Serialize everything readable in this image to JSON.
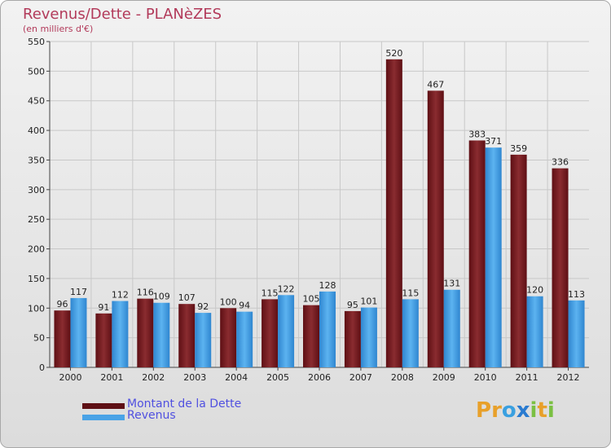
{
  "chart_data": {
    "type": "bar",
    "title": "Revenus/Dette - PLANèZES",
    "subtitle": "(en milliers d'€)",
    "categories": [
      "2000",
      "2001",
      "2002",
      "2003",
      "2004",
      "2005",
      "2006",
      "2007",
      "2008",
      "2009",
      "2010",
      "2011",
      "2012"
    ],
    "series": [
      {
        "name": "Montant de la Dette",
        "color": "#7a1f24",
        "values": [
          96,
          91,
          116,
          107,
          100,
          115,
          105,
          95,
          520,
          467,
          383,
          359,
          336
        ]
      },
      {
        "name": "Revenus",
        "color": "#4aa3e6",
        "values": [
          117,
          112,
          109,
          92,
          94,
          122,
          128,
          101,
          115,
          131,
          371,
          120,
          113
        ]
      }
    ],
    "ylim": [
      0,
      550
    ],
    "yticks": [
      0,
      50,
      100,
      150,
      200,
      250,
      300,
      350,
      400,
      450,
      500,
      550
    ],
    "grid": true,
    "legend_position": "bottom-left"
  },
  "logo": {
    "letters": [
      "P",
      "r",
      "o",
      "x",
      "i",
      "t",
      "i"
    ],
    "colors": [
      "#e8a02a",
      "#e8a02a",
      "#3aa0e0",
      "#2a7bd0",
      "#7bc043",
      "#e8a02a",
      "#7bc043"
    ]
  }
}
